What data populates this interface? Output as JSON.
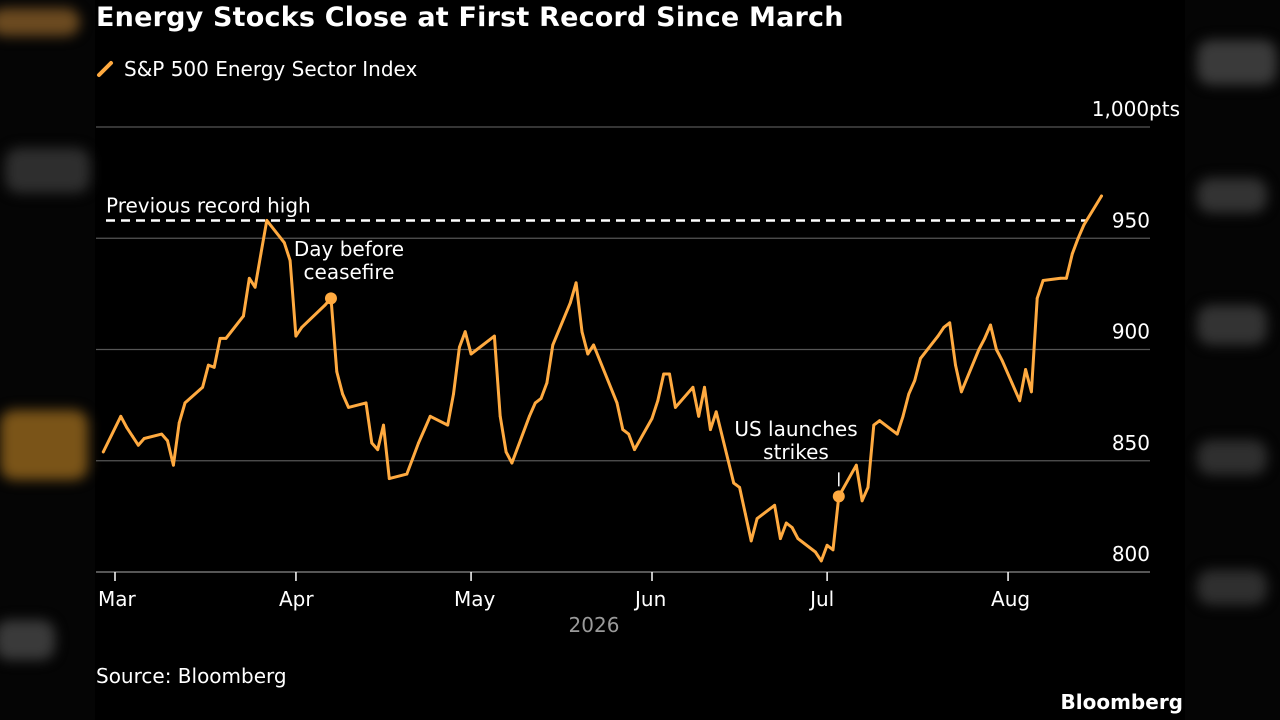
{
  "title": "Energy Stocks Close at First Record Since March",
  "legend": {
    "label": "S&P 500 Energy Sector Index"
  },
  "source": "Source: Bloomberg",
  "brand": "Bloomberg",
  "colors": {
    "series": "#FFAA40",
    "background": "#000000",
    "grid": "#555555",
    "reference": "#FFFFFF",
    "text": "#FFFFFF",
    "year": "#9A9A9A"
  },
  "chart_data": {
    "type": "line",
    "title": "Energy Stocks Close at First Record Since March",
    "xlabel": "2026",
    "ylabel": "",
    "ylim": [
      800,
      1000
    ],
    "y_ticks": [
      {
        "value": 800,
        "label": "800"
      },
      {
        "value": 850,
        "label": "850"
      },
      {
        "value": 900,
        "label": "900"
      },
      {
        "value": 950,
        "label": "950"
      },
      {
        "value": 1000,
        "label": "1,000pts"
      }
    ],
    "x_ticks": [
      {
        "date": "2026-03-01",
        "label": "Mar"
      },
      {
        "date": "2026-04-01",
        "label": "Apr"
      },
      {
        "date": "2026-05-01",
        "label": "May"
      },
      {
        "date": "2026-06-01",
        "label": "Jun"
      },
      {
        "date": "2026-07-01",
        "label": "Jul"
      },
      {
        "date": "2026-08-01",
        "label": "Aug"
      }
    ],
    "grid": true,
    "legend_position": "top-left",
    "series": [
      {
        "name": "S&P 500 Energy Sector Index",
        "points": [
          [
            "2026-02-27",
            854
          ],
          [
            "2026-03-02",
            870
          ],
          [
            "2026-03-03",
            865
          ],
          [
            "2026-03-04",
            861
          ],
          [
            "2026-03-05",
            857
          ],
          [
            "2026-03-06",
            860
          ],
          [
            "2026-03-09",
            862
          ],
          [
            "2026-03-10",
            859
          ],
          [
            "2026-03-11",
            848
          ],
          [
            "2026-03-12",
            867
          ],
          [
            "2026-03-13",
            876
          ],
          [
            "2026-03-16",
            883
          ],
          [
            "2026-03-17",
            893
          ],
          [
            "2026-03-18",
            892
          ],
          [
            "2026-03-19",
            905
          ],
          [
            "2026-03-20",
            905
          ],
          [
            "2026-03-23",
            915
          ],
          [
            "2026-03-24",
            932
          ],
          [
            "2026-03-25",
            928
          ],
          [
            "2026-03-26",
            943
          ],
          [
            "2026-03-27",
            958
          ],
          [
            "2026-03-30",
            948
          ],
          [
            "2026-03-31",
            940
          ],
          [
            "2026-04-01",
            906
          ],
          [
            "2026-04-02",
            910
          ],
          [
            "2026-04-06",
            920
          ],
          [
            "2026-04-07",
            923
          ],
          [
            "2026-04-08",
            890
          ],
          [
            "2026-04-09",
            880
          ],
          [
            "2026-04-10",
            874
          ],
          [
            "2026-04-13",
            876
          ],
          [
            "2026-04-14",
            858
          ],
          [
            "2026-04-15",
            855
          ],
          [
            "2026-04-16",
            866
          ],
          [
            "2026-04-17",
            842
          ],
          [
            "2026-04-20",
            844
          ],
          [
            "2026-04-21",
            851
          ],
          [
            "2026-04-22",
            858
          ],
          [
            "2026-04-23",
            864
          ],
          [
            "2026-04-24",
            870
          ],
          [
            "2026-04-27",
            866
          ],
          [
            "2026-04-28",
            880
          ],
          [
            "2026-04-29",
            901
          ],
          [
            "2026-04-30",
            908
          ],
          [
            "2026-05-01",
            898
          ],
          [
            "2026-05-04",
            904
          ],
          [
            "2026-05-05",
            906
          ],
          [
            "2026-05-06",
            870
          ],
          [
            "2026-05-07",
            854
          ],
          [
            "2026-05-08",
            849
          ],
          [
            "2026-05-11",
            870
          ],
          [
            "2026-05-12",
            876
          ],
          [
            "2026-05-13",
            878
          ],
          [
            "2026-05-14",
            885
          ],
          [
            "2026-05-15",
            902
          ],
          [
            "2026-05-18",
            921
          ],
          [
            "2026-05-19",
            930
          ],
          [
            "2026-05-20",
            908
          ],
          [
            "2026-05-21",
            898
          ],
          [
            "2026-05-22",
            902
          ],
          [
            "2026-05-26",
            876
          ],
          [
            "2026-05-27",
            864
          ],
          [
            "2026-05-28",
            862
          ],
          [
            "2026-05-29",
            855
          ],
          [
            "2026-06-01",
            869
          ],
          [
            "2026-06-02",
            877
          ],
          [
            "2026-06-03",
            889
          ],
          [
            "2026-06-04",
            889
          ],
          [
            "2026-06-05",
            874
          ],
          [
            "2026-06-08",
            883
          ],
          [
            "2026-06-09",
            870
          ],
          [
            "2026-06-10",
            883
          ],
          [
            "2026-06-11",
            864
          ],
          [
            "2026-06-12",
            872
          ],
          [
            "2026-06-15",
            840
          ],
          [
            "2026-06-16",
            838
          ],
          [
            "2026-06-17",
            826
          ],
          [
            "2026-06-18",
            814
          ],
          [
            "2026-06-19",
            824
          ],
          [
            "2026-06-22",
            830
          ],
          [
            "2026-06-23",
            815
          ],
          [
            "2026-06-24",
            822
          ],
          [
            "2026-06-25",
            820
          ],
          [
            "2026-06-26",
            815
          ],
          [
            "2026-06-29",
            809
          ],
          [
            "2026-06-30",
            805
          ],
          [
            "2026-07-01",
            812
          ],
          [
            "2026-07-02",
            810
          ],
          [
            "2026-07-03",
            834
          ],
          [
            "2026-07-06",
            848
          ],
          [
            "2026-07-07",
            832
          ],
          [
            "2026-07-08",
            838
          ],
          [
            "2026-07-09",
            866
          ],
          [
            "2026-07-10",
            868
          ],
          [
            "2026-07-13",
            862
          ],
          [
            "2026-07-14",
            870
          ],
          [
            "2026-07-15",
            880
          ],
          [
            "2026-07-16",
            886
          ],
          [
            "2026-07-17",
            896
          ],
          [
            "2026-07-20",
            906
          ],
          [
            "2026-07-21",
            910
          ],
          [
            "2026-07-22",
            912
          ],
          [
            "2026-07-23",
            893
          ],
          [
            "2026-07-24",
            881
          ],
          [
            "2026-07-27",
            900
          ],
          [
            "2026-07-28",
            905
          ],
          [
            "2026-07-29",
            911
          ],
          [
            "2026-07-30",
            900
          ],
          [
            "2026-07-31",
            895
          ],
          [
            "2026-08-03",
            877
          ],
          [
            "2026-08-04",
            891
          ],
          [
            "2026-08-05",
            881
          ],
          [
            "2026-08-06",
            923
          ],
          [
            "2026-08-07",
            931
          ],
          [
            "2026-08-10",
            932
          ],
          [
            "2026-08-11",
            932
          ],
          [
            "2026-08-12",
            943
          ],
          [
            "2026-08-13",
            950
          ],
          [
            "2026-08-14",
            956
          ],
          [
            "2026-08-17",
            969
          ]
        ]
      }
    ],
    "reference_line": {
      "value": 958,
      "label": "Previous record high"
    },
    "annotations": [
      {
        "date": "2026-04-07",
        "value": 923,
        "lines": [
          "Day before",
          "ceasefire"
        ]
      },
      {
        "date": "2026-07-03",
        "value": 834,
        "lines": [
          "US launches",
          "strikes"
        ]
      }
    ]
  }
}
